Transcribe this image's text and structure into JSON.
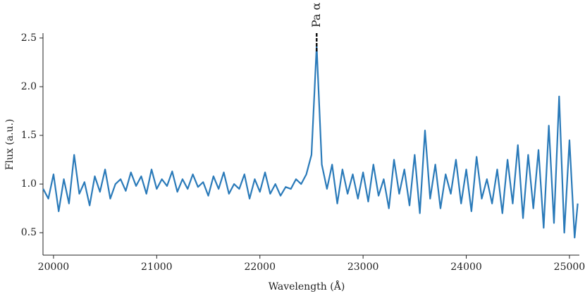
{
  "chart_data": {
    "type": "line",
    "x_label": "Wavelength (Å)",
    "y_label": "Flux (a.u.)",
    "xlim": [
      19898,
      25096
    ],
    "ylim": [
      0.27,
      2.55
    ],
    "xticks": [
      20000,
      21000,
      22000,
      23000,
      24000,
      25000
    ],
    "yticks": [
      0.5,
      {
        "value": 1,
        "label": "1.0"
      },
      1.5,
      {
        "value": 2,
        "label": "2.0"
      },
      2.5
    ],
    "annotations": [
      {
        "text": "Pa α",
        "x": 22550
      }
    ],
    "series": [
      {
        "color": "#2a7ab9",
        "x": [
          19900,
          19950,
          20000,
          20050,
          20100,
          20150,
          20200,
          20250,
          20300,
          20350,
          20400,
          20450,
          20500,
          20550,
          20600,
          20650,
          20700,
          20750,
          20800,
          20850,
          20900,
          20950,
          21000,
          21050,
          21100,
          21150,
          21200,
          21250,
          21300,
          21350,
          21400,
          21450,
          21500,
          21550,
          21600,
          21650,
          21700,
          21750,
          21800,
          21850,
          21900,
          21950,
          22000,
          22050,
          22100,
          22150,
          22200,
          22250,
          22300,
          22350,
          22400,
          22450,
          22500,
          22550,
          22600,
          22650,
          22700,
          22750,
          22800,
          22850,
          22900,
          22950,
          23000,
          23050,
          23100,
          23150,
          23200,
          23250,
          23300,
          23350,
          23400,
          23450,
          23500,
          23550,
          23600,
          23650,
          23700,
          23750,
          23800,
          23850,
          23900,
          23950,
          24000,
          24050,
          24100,
          24150,
          24200,
          24250,
          24300,
          24350,
          24400,
          24450,
          24500,
          24550,
          24600,
          24650,
          24700,
          24750,
          24800,
          24850,
          24900,
          24950,
          25000,
          25050,
          25080
        ],
        "values": [
          0.95,
          0.85,
          1.1,
          0.72,
          1.05,
          0.8,
          1.3,
          0.9,
          1.02,
          0.78,
          1.08,
          0.92,
          1.15,
          0.85,
          1.0,
          1.05,
          0.93,
          1.12,
          0.98,
          1.08,
          0.9,
          1.15,
          0.95,
          1.05,
          0.98,
          1.13,
          0.92,
          1.05,
          0.95,
          1.1,
          0.97,
          1.02,
          0.88,
          1.08,
          0.95,
          1.12,
          0.9,
          1.0,
          0.95,
          1.1,
          0.85,
          1.05,
          0.92,
          1.12,
          0.9,
          1.0,
          0.88,
          0.97,
          0.95,
          1.05,
          1.0,
          1.1,
          1.3,
          2.42,
          1.2,
          0.95,
          1.2,
          0.8,
          1.15,
          0.9,
          1.1,
          0.85,
          1.12,
          0.82,
          1.2,
          0.88,
          1.05,
          0.75,
          1.25,
          0.9,
          1.15,
          0.78,
          1.3,
          0.7,
          1.55,
          0.85,
          1.2,
          0.75,
          1.1,
          0.9,
          1.25,
          0.8,
          1.15,
          0.72,
          1.28,
          0.85,
          1.05,
          0.8,
          1.15,
          0.7,
          1.25,
          0.8,
          1.4,
          0.65,
          1.3,
          0.75,
          1.35,
          0.55,
          1.6,
          0.6,
          1.9,
          0.5,
          1.45,
          0.45,
          0.8
        ]
      }
    ]
  }
}
